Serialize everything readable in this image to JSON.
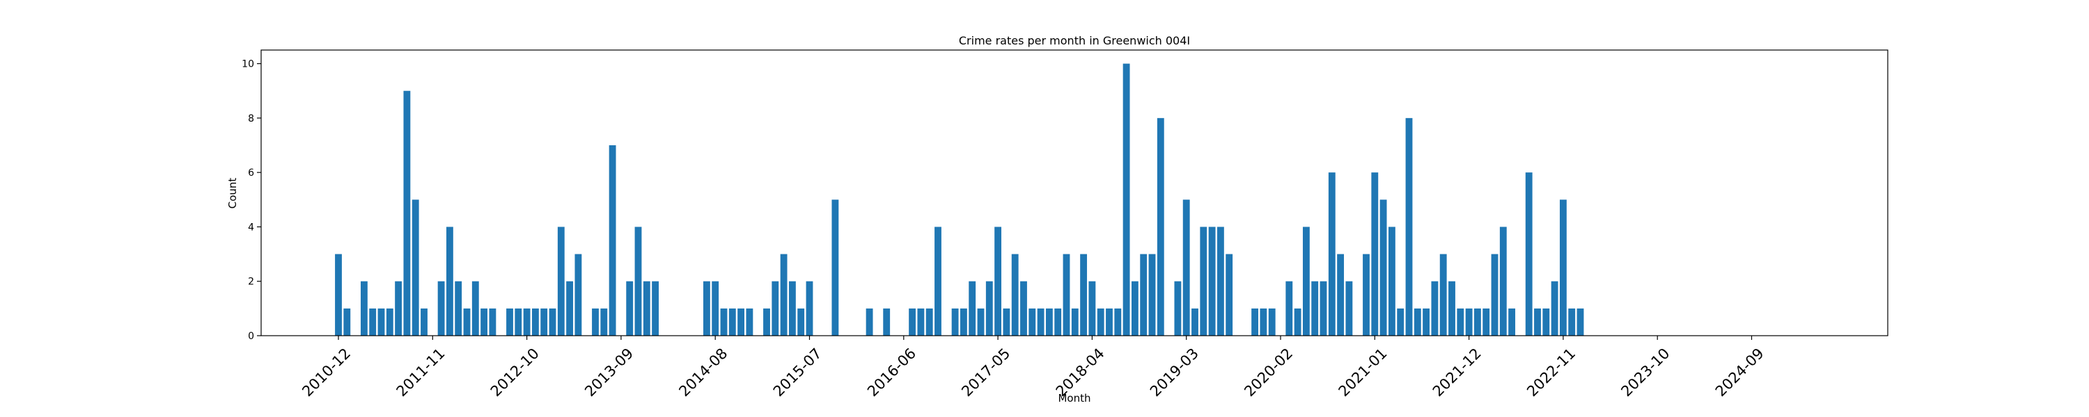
{
  "chart_data": {
    "type": "bar",
    "title": "Crime rates per month in Greenwich 004I",
    "xlabel": "Month",
    "ylabel": "Count",
    "ylim": [
      0,
      10.5
    ],
    "yticks": [
      0,
      2,
      4,
      6,
      8,
      10
    ],
    "grid": false,
    "legend": "none",
    "bar_color": "#1f77b4",
    "xtick_labels": [
      "2010-12",
      "2011-11",
      "2012-10",
      "2013-09",
      "2014-08",
      "2015-07",
      "2016-06",
      "2017-05",
      "2018-04",
      "2019-03",
      "2020-02",
      "2021-01",
      "2021-12",
      "2022-11",
      "2023-10",
      "2024-09"
    ],
    "x": [
      "2010-12",
      "2011-01",
      "2011-03",
      "2011-04",
      "2011-05",
      "2011-06",
      "2011-07",
      "2011-08",
      "2011-09",
      "2011-10",
      "2011-12",
      "2012-01",
      "2012-02",
      "2012-03",
      "2012-04",
      "2012-05",
      "2012-06",
      "2012-08",
      "2012-09",
      "2012-10",
      "2012-11",
      "2012-12",
      "2013-01",
      "2013-02",
      "2013-03",
      "2013-04",
      "2013-06",
      "2013-07",
      "2013-08",
      "2013-10",
      "2013-11",
      "2013-12",
      "2014-01",
      "2014-07",
      "2014-08",
      "2014-09",
      "2014-10",
      "2014-11",
      "2014-12",
      "2015-02",
      "2015-03",
      "2015-04",
      "2015-05",
      "2015-06",
      "2015-07",
      "2015-10",
      "2016-02",
      "2016-04",
      "2016-07",
      "2016-08",
      "2016-09",
      "2016-10",
      "2016-12",
      "2017-01",
      "2017-02",
      "2017-03",
      "2017-04",
      "2017-05",
      "2017-06",
      "2017-07",
      "2017-08",
      "2017-09",
      "2017-10",
      "2017-11",
      "2017-12",
      "2018-01",
      "2018-02",
      "2018-03",
      "2018-04",
      "2018-05",
      "2018-06",
      "2018-07",
      "2018-08",
      "2018-09",
      "2018-10",
      "2018-11",
      "2018-12",
      "2019-02",
      "2019-03",
      "2019-04",
      "2019-05",
      "2019-06",
      "2019-07",
      "2019-08",
      "2019-11",
      "2019-12",
      "2020-01",
      "2020-03",
      "2020-04",
      "2020-05",
      "2020-06",
      "2020-07",
      "2020-08",
      "2020-09",
      "2020-10",
      "2020-12",
      "2021-01",
      "2021-02",
      "2021-03",
      "2021-04",
      "2021-05",
      "2021-06",
      "2021-07",
      "2021-08",
      "2021-09",
      "2021-10",
      "2021-11",
      "2021-12",
      "2022-01",
      "2022-02",
      "2022-03",
      "2022-04",
      "2022-05",
      "2022-07",
      "2022-08",
      "2022-09",
      "2022-10",
      "2022-11",
      "2022-12",
      "2023-01"
    ],
    "values": [
      3,
      1,
      2,
      1,
      1,
      1,
      2,
      9,
      5,
      1,
      2,
      4,
      2,
      1,
      2,
      1,
      1,
      1,
      1,
      1,
      1,
      1,
      1,
      4,
      2,
      3,
      1,
      1,
      7,
      2,
      4,
      2,
      2,
      2,
      2,
      1,
      1,
      1,
      1,
      1,
      2,
      3,
      2,
      1,
      2,
      5,
      1,
      1,
      1,
      1,
      1,
      4,
      1,
      1,
      2,
      1,
      2,
      4,
      1,
      3,
      2,
      1,
      1,
      1,
      1,
      3,
      1,
      3,
      2,
      1,
      1,
      1,
      10,
      2,
      3,
      3,
      8,
      2,
      5,
      1,
      4,
      4,
      4,
      3,
      1,
      1,
      1,
      2,
      1,
      4,
      2,
      2,
      6,
      3,
      2,
      3,
      6,
      5,
      4,
      1,
      8,
      1,
      1,
      2,
      3,
      2,
      1,
      1,
      1,
      1,
      3,
      4,
      1,
      6,
      1,
      1,
      2,
      5,
      1,
      1
    ]
  }
}
